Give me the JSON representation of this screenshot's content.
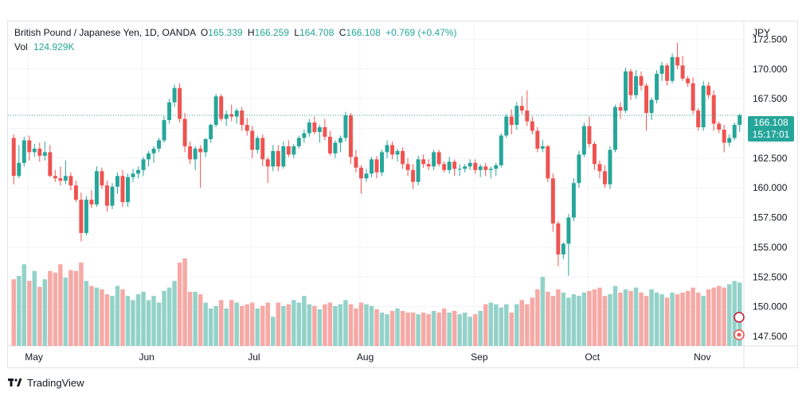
{
  "header": {
    "symbol": "British Pound / Japanese Yen, 1D, OANDA",
    "o_label": "O",
    "o_value": "165.339",
    "h_label": "H",
    "h_value": "166.259",
    "l_label": "L",
    "l_value": "164.708",
    "c_label": "C",
    "c_value": "166.108",
    "change": "+0.769 (+0.47%)",
    "vol_label": "Vol",
    "vol_value": "124.929K"
  },
  "currency_label": "JPY",
  "last_price": {
    "price": "166.108",
    "countdown": "15:17:01"
  },
  "footer": {
    "brand": "TradingView"
  },
  "colors": {
    "up": "#26a69a",
    "down": "#ef5350",
    "up_vol": "#93d2c9",
    "down_vol": "#f6a9a5",
    "grid": "#f0f3fa",
    "last": "#26a69a"
  },
  "chart_data": {
    "type": "candlestick",
    "y_axis": {
      "ticks": [
        172.5,
        170,
        167.5,
        165,
        162.5,
        160,
        157.5,
        155,
        152.5,
        150,
        147.5
      ],
      "tick_labels": [
        "172.500",
        "170.000",
        "167.500",
        "165.000",
        "162.500",
        "160.000",
        "157.500",
        "155.000",
        "152.500",
        "150.000",
        "147.500"
      ],
      "ylim": [
        146.7,
        174.0
      ]
    },
    "x_axis": {
      "month_labels": [
        "May",
        "Jun",
        "Jul",
        "Aug",
        "Sep",
        "Oct",
        "Nov"
      ]
    },
    "last_price": 166.108,
    "grid": true,
    "series": [
      {
        "name": "Price",
        "candles": [
          [
            164.2,
            164.5,
            160.3,
            161.0
          ],
          [
            161.0,
            163.6,
            160.8,
            162.1
          ],
          [
            162.1,
            164.3,
            161.8,
            164.0
          ],
          [
            164.0,
            164.4,
            162.3,
            163.0
          ],
          [
            163.0,
            163.7,
            162.6,
            163.3
          ],
          [
            163.3,
            163.8,
            162.2,
            162.7
          ],
          [
            162.7,
            163.9,
            162.3,
            163.0
          ],
          [
            163.0,
            163.6,
            160.9,
            161.0
          ],
          [
            161.0,
            161.5,
            160.5,
            160.8
          ],
          [
            160.8,
            161.8,
            160.2,
            160.6
          ],
          [
            160.6,
            162.3,
            160.3,
            161.0
          ],
          [
            161.0,
            161.3,
            159.8,
            160.2
          ],
          [
            160.2,
            160.6,
            158.8,
            159.0
          ],
          [
            159.0,
            159.6,
            155.5,
            156.2
          ],
          [
            156.2,
            159.3,
            156.0,
            159.0
          ],
          [
            159.0,
            159.8,
            158.3,
            158.6
          ],
          [
            158.6,
            161.8,
            158.4,
            161.4
          ],
          [
            161.4,
            161.7,
            159.9,
            160.2
          ],
          [
            160.2,
            160.6,
            158.0,
            158.5
          ],
          [
            158.5,
            160.4,
            158.2,
            160.1
          ],
          [
            160.1,
            161.3,
            159.5,
            161.0
          ],
          [
            161.0,
            161.5,
            158.4,
            158.8
          ],
          [
            158.8,
            161.2,
            158.4,
            160.9
          ],
          [
            160.9,
            161.6,
            160.5,
            161.2
          ],
          [
            161.2,
            161.8,
            160.8,
            161.5
          ],
          [
            161.5,
            162.6,
            161.0,
            162.4
          ],
          [
            162.4,
            163.1,
            161.8,
            162.9
          ],
          [
            162.9,
            163.5,
            162.1,
            163.3
          ],
          [
            163.3,
            164.2,
            163.0,
            164.0
          ],
          [
            164.0,
            166.0,
            163.8,
            165.7
          ],
          [
            165.7,
            167.5,
            165.4,
            167.2
          ],
          [
            167.2,
            168.7,
            166.8,
            168.4
          ],
          [
            168.4,
            168.8,
            165.5,
            165.8
          ],
          [
            165.8,
            166.3,
            163.0,
            163.5
          ],
          [
            163.5,
            163.9,
            162.0,
            162.4
          ],
          [
            162.4,
            163.5,
            161.5,
            163.3
          ],
          [
            163.3,
            163.6,
            160.0,
            163.0
          ],
          [
            163.0,
            164.2,
            162.6,
            164.1
          ],
          [
            164.1,
            165.4,
            163.8,
            165.3
          ],
          [
            165.3,
            167.9,
            165.1,
            167.7
          ],
          [
            167.7,
            167.9,
            165.6,
            165.8
          ],
          [
            165.8,
            166.5,
            165.2,
            166.2
          ],
          [
            166.2,
            167.0,
            165.6,
            166.0
          ],
          [
            166.0,
            166.7,
            165.4,
            166.5
          ],
          [
            166.5,
            166.8,
            164.8,
            165.3
          ],
          [
            165.3,
            165.9,
            164.4,
            164.8
          ],
          [
            164.8,
            165.2,
            162.5,
            163.2
          ],
          [
            163.2,
            164.4,
            162.9,
            164.2
          ],
          [
            164.2,
            164.5,
            161.8,
            162.4
          ],
          [
            162.4,
            162.6,
            160.4,
            161.8
          ],
          [
            161.8,
            163.6,
            161.4,
            163.1
          ],
          [
            163.1,
            163.6,
            161.4,
            161.8
          ],
          [
            161.8,
            163.9,
            161.6,
            163.5
          ],
          [
            163.5,
            164.0,
            162.6,
            162.8
          ],
          [
            162.8,
            163.7,
            162.5,
            163.5
          ],
          [
            163.5,
            164.4,
            163.3,
            164.2
          ],
          [
            164.2,
            164.9,
            163.8,
            164.6
          ],
          [
            164.6,
            165.8,
            164.3,
            165.5
          ],
          [
            165.5,
            166.0,
            164.5,
            164.7
          ],
          [
            164.7,
            165.3,
            163.8,
            165.1
          ],
          [
            165.1,
            165.8,
            164.0,
            164.3
          ],
          [
            164.3,
            164.8,
            162.7,
            162.9
          ],
          [
            162.9,
            164.0,
            162.5,
            163.8
          ],
          [
            163.8,
            164.4,
            163.0,
            164.2
          ],
          [
            164.2,
            166.4,
            163.9,
            166.1
          ],
          [
            166.1,
            166.3,
            162.0,
            162.6
          ],
          [
            162.6,
            163.2,
            161.3,
            161.7
          ],
          [
            161.7,
            161.9,
            159.5,
            160.8
          ],
          [
            160.8,
            161.6,
            160.5,
            161.2
          ],
          [
            161.2,
            162.6,
            160.9,
            162.4
          ],
          [
            162.4,
            162.7,
            160.8,
            161.3
          ],
          [
            161.3,
            163.2,
            161.0,
            163.0
          ],
          [
            163.0,
            164.0,
            162.5,
            163.6
          ],
          [
            163.6,
            163.9,
            162.4,
            162.8
          ],
          [
            162.8,
            163.3,
            162.2,
            163.1
          ],
          [
            163.1,
            163.4,
            161.6,
            162.0
          ],
          [
            162.0,
            162.5,
            161.0,
            161.5
          ],
          [
            161.5,
            162.0,
            159.9,
            160.5
          ],
          [
            160.5,
            162.7,
            160.2,
            162.4
          ],
          [
            162.4,
            162.8,
            161.7,
            162.0
          ],
          [
            162.0,
            162.4,
            161.5,
            161.8
          ],
          [
            161.8,
            163.2,
            161.5,
            163.0
          ],
          [
            163.0,
            163.2,
            161.8,
            162.0
          ],
          [
            162.0,
            162.2,
            161.3,
            161.5
          ],
          [
            161.5,
            162.6,
            161.2,
            162.2
          ],
          [
            162.2,
            162.4,
            161.0,
            161.6
          ],
          [
            161.6,
            162.0,
            161.0,
            161.6
          ],
          [
            161.6,
            162.0,
            161.3,
            161.8
          ],
          [
            161.8,
            162.4,
            161.5,
            162.1
          ],
          [
            162.1,
            162.4,
            161.2,
            161.5
          ],
          [
            161.5,
            162.0,
            160.9,
            161.8
          ],
          [
            161.8,
            162.1,
            161.0,
            161.5
          ],
          [
            161.5,
            161.8,
            160.8,
            161.6
          ],
          [
            161.6,
            162.1,
            161.0,
            161.9
          ],
          [
            161.9,
            164.6,
            161.7,
            164.4
          ],
          [
            164.4,
            166.2,
            164.2,
            166.0
          ],
          [
            166.0,
            166.6,
            164.5,
            165.3
          ],
          [
            165.3,
            167.2,
            164.9,
            166.9
          ],
          [
            166.9,
            167.7,
            166.2,
            166.5
          ],
          [
            166.5,
            168.2,
            165.2,
            165.6
          ],
          [
            165.6,
            166.0,
            164.5,
            164.8
          ],
          [
            164.8,
            165.1,
            163.0,
            163.3
          ],
          [
            163.3,
            164.0,
            163.0,
            163.5
          ],
          [
            163.5,
            163.6,
            160.5,
            160.8
          ],
          [
            160.8,
            161.2,
            156.3,
            157.0
          ],
          [
            157.0,
            157.2,
            153.4,
            154.4
          ],
          [
            154.4,
            155.4,
            154.0,
            155.3
          ],
          [
            155.3,
            157.8,
            152.6,
            157.5
          ],
          [
            157.5,
            160.8,
            157.2,
            160.4
          ],
          [
            160.4,
            163.1,
            160.0,
            162.8
          ],
          [
            162.8,
            165.5,
            162.6,
            165.2
          ],
          [
            165.2,
            166.0,
            163.4,
            163.7
          ],
          [
            163.7,
            163.9,
            161.5,
            162.0
          ],
          [
            162.0,
            162.3,
            160.8,
            161.4
          ],
          [
            161.4,
            161.9,
            160.0,
            160.3
          ],
          [
            160.3,
            163.5,
            159.9,
            163.2
          ],
          [
            163.2,
            167.0,
            163.0,
            166.8
          ],
          [
            166.8,
            167.2,
            165.8,
            166.5
          ],
          [
            166.5,
            170.1,
            166.3,
            169.8
          ],
          [
            169.8,
            170.0,
            167.4,
            167.8
          ],
          [
            167.8,
            169.9,
            167.5,
            169.4
          ],
          [
            169.4,
            169.8,
            168.2,
            168.6
          ],
          [
            168.6,
            168.8,
            164.8,
            166.3
          ],
          [
            166.3,
            167.6,
            165.7,
            167.4
          ],
          [
            167.4,
            169.9,
            167.1,
            169.6
          ],
          [
            169.6,
            170.6,
            169.0,
            170.3
          ],
          [
            170.3,
            170.5,
            168.6,
            169.0
          ],
          [
            169.0,
            171.3,
            168.8,
            171.0
          ],
          [
            171.0,
            172.2,
            170.0,
            170.3
          ],
          [
            170.3,
            171.1,
            169.0,
            169.2
          ],
          [
            169.2,
            169.4,
            168.5,
            168.8
          ],
          [
            168.8,
            169.3,
            166.2,
            166.5
          ],
          [
            166.5,
            166.7,
            164.8,
            165.1
          ],
          [
            165.1,
            169.0,
            164.8,
            168.6
          ],
          [
            168.6,
            168.9,
            167.5,
            167.8
          ],
          [
            167.8,
            168.2,
            164.8,
            165.4
          ],
          [
            165.4,
            165.6,
            164.6,
            164.9
          ],
          [
            164.9,
            165.3,
            163.0,
            163.8
          ],
          [
            163.8,
            164.5,
            163.5,
            164.2
          ],
          [
            164.2,
            165.5,
            164.0,
            165.3
          ],
          [
            165.3,
            166.26,
            164.71,
            166.11
          ]
        ]
      },
      {
        "name": "Vol",
        "volumes": [
          80,
          84,
          98,
          78,
          90,
          71,
          80,
          90,
          88,
          98,
          82,
          91,
          90,
          100,
          78,
          72,
          70,
          68,
          62,
          60,
          72,
          68,
          60,
          55,
          62,
          65,
          55,
          60,
          52,
          66,
          70,
          78,
          100,
          105,
          65,
          65,
          62,
          52,
          45,
          48,
          55,
          45,
          55,
          52,
          48,
          50,
          52,
          45,
          48,
          52,
          35,
          52,
          48,
          50,
          55,
          52,
          60,
          50,
          48,
          44,
          50,
          52,
          48,
          50,
          55,
          50,
          45,
          52,
          50,
          48,
          44,
          40,
          38,
          42,
          45,
          42,
          40,
          40,
          38,
          40,
          38,
          42,
          40,
          45,
          40,
          42,
          38,
          40,
          35,
          38,
          42,
          50,
          52,
          50,
          46,
          50,
          40,
          50,
          55,
          50,
          58,
          68,
          83,
          65,
          60,
          68,
          64,
          58,
          62,
          60,
          64,
          66,
          68,
          70,
          60,
          62,
          72,
          64,
          68,
          66,
          70,
          64,
          60,
          68,
          64,
          62,
          58,
          64,
          62,
          64,
          66,
          70,
          64,
          60,
          68,
          70,
          72,
          70,
          74,
          78,
          76
        ]
      }
    ]
  }
}
